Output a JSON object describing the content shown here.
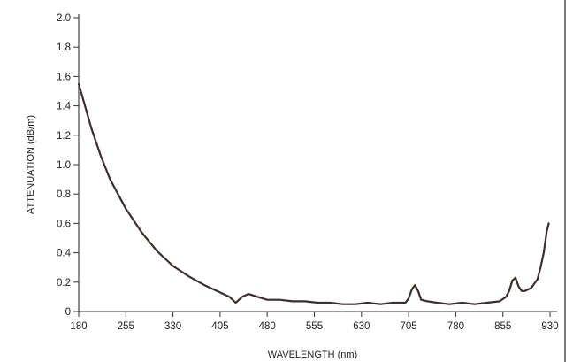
{
  "chart_data": {
    "type": "line",
    "xlabel": "WAVELENGTH (nm)",
    "ylabel": "ATTENUATION (dB/m)",
    "xlim": [
      180,
      930
    ],
    "ylim": [
      0,
      2.0
    ],
    "x_ticks": [
      180,
      255,
      330,
      405,
      480,
      555,
      630,
      705,
      780,
      855,
      930
    ],
    "y_ticks": [
      0,
      0.2,
      0.4,
      0.6,
      0.8,
      1.0,
      1.2,
      1.4,
      1.6,
      1.8,
      2.0
    ],
    "y_tick_labels": [
      "0",
      "0.2",
      "0.4",
      "0.6",
      "0.8",
      "1.0",
      "1.2",
      "1.4",
      "1.6",
      "1.8",
      "2.0"
    ],
    "grid": false,
    "colors": {
      "curve": "#3a2f2c",
      "axis": "#333333"
    },
    "series": [
      {
        "x": [
          180,
          190,
          200,
          215,
          230,
          255,
          280,
          305,
          330,
          355,
          380,
          405,
          420,
          430,
          440,
          450,
          465,
          480,
          500,
          520,
          540,
          560,
          580,
          600,
          620,
          640,
          660,
          680,
          700,
          705,
          710,
          715,
          720,
          725,
          735,
          750,
          770,
          790,
          810,
          830,
          850,
          860,
          865,
          870,
          875,
          880,
          885,
          890,
          900,
          910,
          915,
          920,
          925,
          928
        ],
        "y": [
          1.55,
          1.4,
          1.25,
          1.06,
          0.9,
          0.7,
          0.54,
          0.41,
          0.31,
          0.24,
          0.18,
          0.13,
          0.1,
          0.06,
          0.1,
          0.12,
          0.1,
          0.08,
          0.08,
          0.07,
          0.07,
          0.06,
          0.06,
          0.05,
          0.05,
          0.06,
          0.05,
          0.06,
          0.06,
          0.09,
          0.15,
          0.18,
          0.14,
          0.08,
          0.07,
          0.06,
          0.05,
          0.06,
          0.05,
          0.06,
          0.07,
          0.1,
          0.14,
          0.21,
          0.23,
          0.17,
          0.14,
          0.14,
          0.16,
          0.22,
          0.3,
          0.4,
          0.55,
          0.6
        ]
      }
    ]
  }
}
